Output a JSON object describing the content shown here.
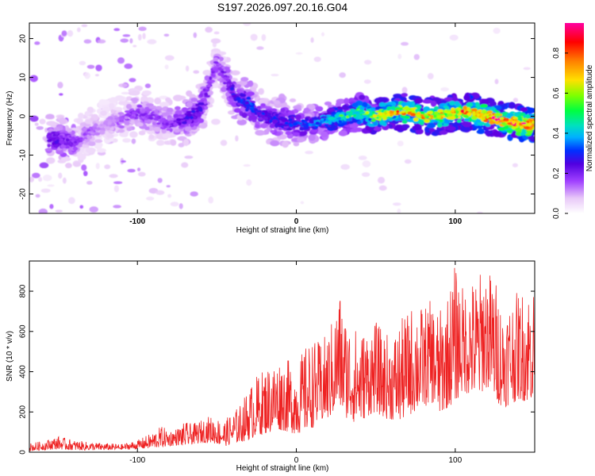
{
  "figure_title": "S197.2026.097.20.16.G04",
  "chart_data": [
    {
      "type": "heatmap",
      "name": "spectrogram",
      "xlabel": "Height of straight line (km)",
      "ylabel": "Frequency (Hz)",
      "xlim": [
        -168,
        150
      ],
      "ylim": [
        -25,
        24
      ],
      "xticks": [
        -100,
        0,
        100
      ],
      "xtick_labels": [
        "-100",
        "0",
        "100"
      ],
      "yticks": [
        -20,
        -10,
        0,
        10,
        20
      ],
      "ytick_labels": [
        "-20",
        "-10",
        "0",
        "10",
        "20"
      ],
      "colorbar": {
        "label": "Normalized spectral amplitude",
        "range": [
          0,
          0.95
        ],
        "ticks": [
          0.0,
          0.2,
          0.4,
          0.6,
          0.8
        ],
        "tick_labels": [
          "0.0",
          "0.2",
          "0.4",
          "0.6",
          "0.8"
        ],
        "colormap": [
          "#ffffff",
          "#e8c8f8",
          "#a040ff",
          "#6000e0",
          "#0030ff",
          "#00b0ff",
          "#00e0c0",
          "#00ff40",
          "#c0ff00",
          "#ffe000",
          "#ff8000",
          "#ff0000",
          "#ff00a0"
        ]
      },
      "ridge_track": {
        "x": [
          -150,
          -140,
          -130,
          -120,
          -110,
          -100,
          -90,
          -80,
          -70,
          -60,
          -55,
          -50,
          -45,
          -40,
          -35,
          -30,
          -25,
          -20,
          -15,
          -10,
          0,
          10,
          20,
          30,
          40,
          50,
          60,
          70,
          80,
          90,
          100,
          110,
          120,
          130,
          140,
          148
        ],
        "freq_hz": [
          -6,
          -7,
          -4,
          -2,
          -1,
          1,
          0,
          -2,
          -1,
          2,
          8,
          14,
          10,
          6,
          4,
          3,
          1,
          0,
          -1,
          -1,
          -2,
          -2,
          -1,
          0,
          1,
          0,
          1,
          1,
          0,
          0,
          1,
          1,
          0,
          -1,
          -2,
          -2
        ],
        "peak_amplitude": [
          0.25,
          0.2,
          0.15,
          0.12,
          0.15,
          0.2,
          0.18,
          0.2,
          0.25,
          0.28,
          0.2,
          0.18,
          0.22,
          0.28,
          0.3,
          0.35,
          0.3,
          0.28,
          0.3,
          0.3,
          0.32,
          0.38,
          0.45,
          0.55,
          0.6,
          0.7,
          0.75,
          0.8,
          0.78,
          0.75,
          0.8,
          0.85,
          0.88,
          0.9,
          0.92,
          0.9
        ]
      }
    },
    {
      "type": "line",
      "name": "snr",
      "xlabel": "Height of straight line (km)",
      "ylabel": "SNR (10 * v/v)",
      "xlim": [
        -168,
        150
      ],
      "ylim": [
        0,
        950
      ],
      "xticks": [
        -100,
        0,
        100
      ],
      "xtick_labels": [
        "-100",
        "0",
        "100"
      ],
      "yticks": [
        0,
        200,
        400,
        600,
        800
      ],
      "ytick_labels": [
        "0",
        "200",
        "400",
        "600",
        "800"
      ],
      "series": [
        {
          "name": "SNR",
          "color": "#ee2222",
          "x": [
            -168,
            -160,
            -150,
            -140,
            -130,
            -120,
            -110,
            -100,
            -90,
            -85,
            -80,
            -75,
            -70,
            -65,
            -60,
            -55,
            -50,
            -45,
            -40,
            -35,
            -30,
            -25,
            -20,
            -15,
            -10,
            -5,
            0,
            5,
            10,
            15,
            20,
            25,
            27,
            30,
            35,
            40,
            45,
            50,
            55,
            60,
            65,
            70,
            75,
            80,
            85,
            90,
            95,
            100,
            105,
            110,
            115,
            117,
            120,
            125,
            130,
            135,
            140,
            145,
            148
          ],
          "envelope_low": [
            5,
            10,
            15,
            10,
            10,
            10,
            12,
            15,
            20,
            25,
            30,
            35,
            30,
            40,
            45,
            50,
            40,
            30,
            40,
            50,
            60,
            80,
            90,
            100,
            110,
            100,
            90,
            100,
            120,
            140,
            160,
            200,
            220,
            180,
            150,
            150,
            180,
            200,
            170,
            160,
            150,
            180,
            200,
            220,
            250,
            180,
            220,
            250,
            300,
            280,
            260,
            300,
            320,
            260,
            220,
            240,
            260,
            250,
            260
          ],
          "envelope_high": [
            45,
            55,
            80,
            60,
            50,
            45,
            40,
            60,
            100,
            130,
            110,
            120,
            150,
            140,
            160,
            180,
            170,
            160,
            200,
            240,
            320,
            380,
            420,
            450,
            470,
            460,
            430,
            520,
            560,
            550,
            600,
            720,
            820,
            700,
            640,
            600,
            620,
            650,
            600,
            580,
            650,
            700,
            760,
            720,
            760,
            700,
            780,
            940,
            820,
            860,
            880,
            940,
            920,
            880,
            720,
            780,
            800,
            820,
            840
          ]
        }
      ]
    }
  ]
}
